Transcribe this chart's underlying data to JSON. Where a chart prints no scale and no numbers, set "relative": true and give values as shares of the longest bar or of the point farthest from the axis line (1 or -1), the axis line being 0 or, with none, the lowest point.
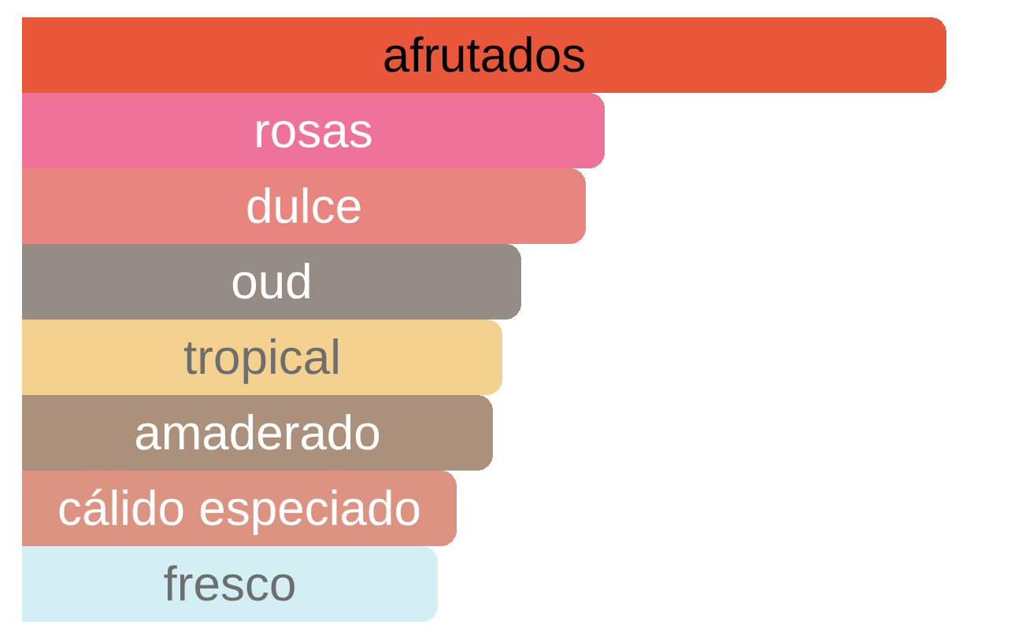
{
  "chart_data": {
    "type": "bar",
    "orientation": "horizontal",
    "relative": true,
    "tick_labels": false,
    "categories": [
      "afrutados",
      "rosas",
      "dulce",
      "oud",
      "tropical",
      "amaderado",
      "cálido especiado",
      "fresco"
    ],
    "values": [
      1,
      0.63,
      0.61,
      0.54,
      0.52,
      0.51,
      0.47,
      0.45
    ],
    "colors": [
      "#e9573a",
      "#ef7398",
      "#e8857f",
      "#968c86",
      "#f4d18f",
      "#ab917b",
      "#dc9381",
      "#d3eff3"
    ]
  }
}
